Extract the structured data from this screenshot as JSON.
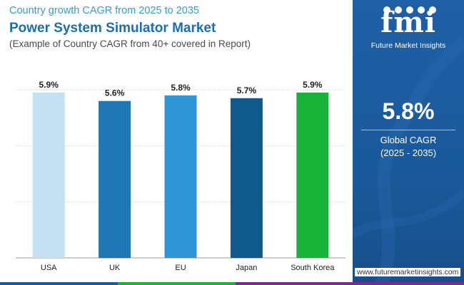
{
  "header": {
    "subtitle": "Country growth CAGR from 2025 to 2035",
    "title": "Power System Simulator Market",
    "note": "(Example of Country CAGR from 40+ covered in Report)"
  },
  "chart_data": {
    "type": "bar",
    "categories": [
      "USA",
      "UK",
      "EU",
      "Japan",
      "South Korea"
    ],
    "values": [
      5.9,
      5.6,
      5.8,
      5.7,
      5.9
    ],
    "value_labels": [
      "5.9%",
      "5.6%",
      "5.8%",
      "5.7%",
      "5.9%"
    ],
    "bar_colors": [
      "#c3e1f3",
      "#1f78b4",
      "#2e95d6",
      "#0e5a8c",
      "#18b43a"
    ],
    "ylim": [
      0,
      6
    ],
    "grid": true,
    "legend": "none"
  },
  "summary": {
    "value": "5.8%",
    "label": "Global CAGR",
    "period": "(2025 - 2035)"
  },
  "brand": {
    "logo": "fmi",
    "name": "Future Market Insights",
    "website": "www.futuremarketinsights.com"
  },
  "colors": {
    "panel": "#1a5a9c",
    "title": "#1a6fae",
    "subtitle": "#2f9fd6",
    "bottom_bar": [
      "#1a5a9c",
      "#1a5a9c",
      "#18b43a",
      "#7a2a8c"
    ]
  }
}
